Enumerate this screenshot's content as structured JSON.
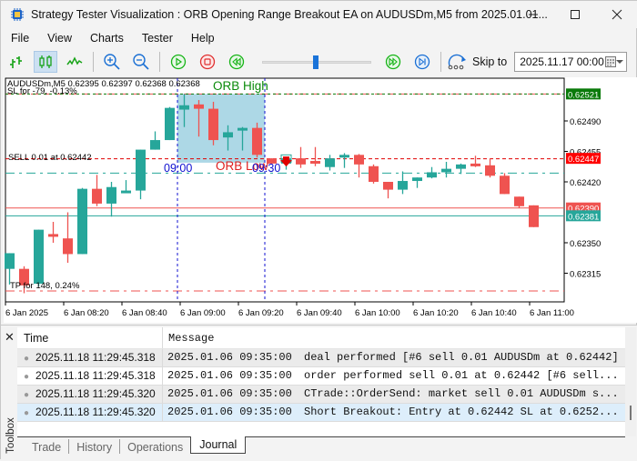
{
  "window": {
    "title": "Strategy Tester Visualization : ORB Opening Range Breakout EA on AUDUSDm,M5 from 2025.01.01...",
    "controls": [
      "minimize",
      "maximize",
      "close"
    ]
  },
  "menu": [
    "File",
    "View",
    "Charts",
    "Tester",
    "Help"
  ],
  "toolbar": {
    "buttons": [
      {
        "name": "bar-chart",
        "icon": "bar-chart-icon",
        "active": false
      },
      {
        "name": "candlestick-chart",
        "icon": "candlestick-icon",
        "active": true
      },
      {
        "name": "line-chart",
        "icon": "line-chart-icon",
        "active": false
      },
      {
        "name": "zoom-in",
        "icon": "zoom-in-icon"
      },
      {
        "name": "zoom-out",
        "icon": "zoom-out-icon"
      },
      {
        "name": "play",
        "icon": "play-icon"
      },
      {
        "name": "stop",
        "icon": "stop-icon"
      },
      {
        "name": "slower",
        "icon": "rewind-icon"
      },
      {
        "name": "faster",
        "icon": "fast-forward-icon"
      },
      {
        "name": "step",
        "icon": "skip-end-icon"
      }
    ],
    "speed_slider_percent": 48,
    "skip_to_label": "Skip to",
    "skip_to_value": "2025.11.17 00:00"
  },
  "chart": {
    "symbol_info": "AUDUSDm,M5  0.62395 0.62397 0.62368 0.62368",
    "sl_label": "SL for -79, -0.13%",
    "tp_label": "TP for 148, 0.24%",
    "sell_label": "SELL 0.01 at 0.62442",
    "orb_high_label": "ORB High",
    "orb_low_label": "ORB Low",
    "orb_start_label": "09:00",
    "orb_end_label": "09:30",
    "colors": {
      "bull": "#26a69a",
      "bear": "#ef5350",
      "orb_box": "#add8e6",
      "orb_high_text": "#0a8a0a",
      "orb_low_text": "#e02020",
      "time_marker": "#1010d0",
      "sl_tag": "#0a7a0a",
      "bid_tag": "#ff0000",
      "open_tag": "#ef5350",
      "close_tag": "#26a69a"
    },
    "price_tags": [
      {
        "value": "0.62521",
        "kind": "sl"
      },
      {
        "value": "0.62447",
        "kind": "bid"
      },
      {
        "value": "0.62390",
        "kind": "open"
      },
      {
        "value": "0.62381",
        "kind": "close"
      }
    ]
  },
  "chart_data": {
    "type": "candlestick",
    "title": "AUDUSDm,M5",
    "y_ticks": [
      "0.62490",
      "0.62455",
      "0.62420",
      "0.62350",
      "0.62315"
    ],
    "x_ticks": [
      "6 Jan 2025",
      "6 Jan 08:20",
      "6 Jan 08:40",
      "6 Jan 09:00",
      "6 Jan 09:20",
      "6 Jan 09:40",
      "6 Jan 10:00",
      "6 Jan 10:20",
      "6 Jan 10:40",
      "6 Jan 11:00"
    ],
    "ylim": [
      0.62285,
      0.6254
    ],
    "candles": [
      {
        "o": 0.6232,
        "h": 0.6232,
        "l": 0.62302,
        "c": 0.62338
      },
      {
        "o": 0.6232,
        "h": 0.62323,
        "l": 0.62292,
        "c": 0.62301
      },
      {
        "o": 0.62303,
        "h": 0.62365,
        "l": 0.623,
        "c": 0.62365
      },
      {
        "o": 0.6236,
        "h": 0.62374,
        "l": 0.6235,
        "c": 0.62358
      },
      {
        "o": 0.62355,
        "h": 0.62385,
        "l": 0.62327,
        "c": 0.62337
      },
      {
        "o": 0.62337,
        "h": 0.62413,
        "l": 0.62337,
        "c": 0.62412
      },
      {
        "o": 0.62412,
        "h": 0.62428,
        "l": 0.62392,
        "c": 0.62395
      },
      {
        "o": 0.62395,
        "h": 0.6242,
        "l": 0.6238,
        "c": 0.62414
      },
      {
        "o": 0.6241,
        "h": 0.62422,
        "l": 0.62408,
        "c": 0.6241
      },
      {
        "o": 0.6241,
        "h": 0.62456,
        "l": 0.624,
        "c": 0.62457
      },
      {
        "o": 0.62457,
        "h": 0.62478,
        "l": 0.62457,
        "c": 0.62468
      },
      {
        "o": 0.62468,
        "h": 0.62506,
        "l": 0.62468,
        "c": 0.62505
      },
      {
        "o": 0.62503,
        "h": 0.62521,
        "l": 0.62483,
        "c": 0.62508
      },
      {
        "o": 0.62509,
        "h": 0.62514,
        "l": 0.62472,
        "c": 0.62504
      },
      {
        "o": 0.62504,
        "h": 0.62512,
        "l": 0.62462,
        "c": 0.62468
      },
      {
        "o": 0.62471,
        "h": 0.62485,
        "l": 0.62456,
        "c": 0.62477
      },
      {
        "o": 0.62479,
        "h": 0.62483,
        "l": 0.62456,
        "c": 0.62482
      },
      {
        "o": 0.62482,
        "h": 0.62488,
        "l": 0.62448,
        "c": 0.62451
      },
      {
        "o": 0.62447,
        "h": 0.62447,
        "l": 0.6244,
        "c": 0.62441
      },
      {
        "o": 0.62441,
        "h": 0.62447,
        "l": 0.62434,
        "c": 0.62447
      },
      {
        "o": 0.62447,
        "h": 0.6246,
        "l": 0.62436,
        "c": 0.6244
      },
      {
        "o": 0.62444,
        "h": 0.6246,
        "l": 0.62438,
        "c": 0.62441
      },
      {
        "o": 0.62437,
        "h": 0.62451,
        "l": 0.62433,
        "c": 0.62447
      },
      {
        "o": 0.62448,
        "h": 0.62453,
        "l": 0.62436,
        "c": 0.62451
      },
      {
        "o": 0.62451,
        "h": 0.62452,
        "l": 0.62425,
        "c": 0.6244
      },
      {
        "o": 0.62438,
        "h": 0.6244,
        "l": 0.62418,
        "c": 0.6242
      },
      {
        "o": 0.6242,
        "h": 0.6242,
        "l": 0.62401,
        "c": 0.62411
      },
      {
        "o": 0.62411,
        "h": 0.62432,
        "l": 0.62406,
        "c": 0.62421
      },
      {
        "o": 0.62421,
        "h": 0.62425,
        "l": 0.62413,
        "c": 0.62425
      },
      {
        "o": 0.62425,
        "h": 0.62437,
        "l": 0.62424,
        "c": 0.62431
      },
      {
        "o": 0.62431,
        "h": 0.62443,
        "l": 0.62425,
        "c": 0.62435
      },
      {
        "o": 0.62435,
        "h": 0.62441,
        "l": 0.62429,
        "c": 0.6244
      },
      {
        "o": 0.62441,
        "h": 0.6245,
        "l": 0.62437,
        "c": 0.62438
      },
      {
        "o": 0.62439,
        "h": 0.62447,
        "l": 0.62425,
        "c": 0.62427
      },
      {
        "o": 0.62427,
        "h": 0.6243,
        "l": 0.62406,
        "c": 0.62406
      },
      {
        "o": 0.62403,
        "h": 0.62403,
        "l": 0.6239,
        "c": 0.62392
      },
      {
        "o": 0.62393,
        "h": 0.62393,
        "l": 0.62368,
        "c": 0.62368
      }
    ],
    "levels": {
      "orb_high": 0.62521,
      "orb_low": 0.62442,
      "entry": 0.62442,
      "bid": 0.62447,
      "sl": 0.62521,
      "tp": 0.62294,
      "open_line": 0.6239,
      "close_line": 0.62381
    },
    "orb_range": {
      "start": "09:00",
      "end": "09:30"
    }
  },
  "journal": {
    "columns": [
      "Time",
      "Message"
    ],
    "rows": [
      {
        "time": "2025.11.18 11:29:45.318",
        "date": "2025.01.06 09:35:00",
        "message": "deal performed [#6 sell 0.01 AUDUSDm at 0.62442]"
      },
      {
        "time": "2025.11.18 11:29:45.318",
        "date": "2025.01.06 09:35:00",
        "message": "order performed sell 0.01 at 0.62442 [#6 sell..."
      },
      {
        "time": "2025.11.18 11:29:45.320",
        "date": "2025.01.06 09:35:00",
        "message": "CTrade::OrderSend: market sell 0.01 AUDUSDm s..."
      },
      {
        "time": "2025.11.18 11:29:45.320",
        "date": "2025.01.06 09:35:00",
        "message": "Short Breakout: Entry at 0.62442 SL at 0.6252..."
      }
    ],
    "tabs": [
      "Trade",
      "History",
      "Operations",
      "Journal"
    ],
    "active_tab": "Journal",
    "toolbox_label": "Toolbox",
    "close_glyph": "✕"
  }
}
